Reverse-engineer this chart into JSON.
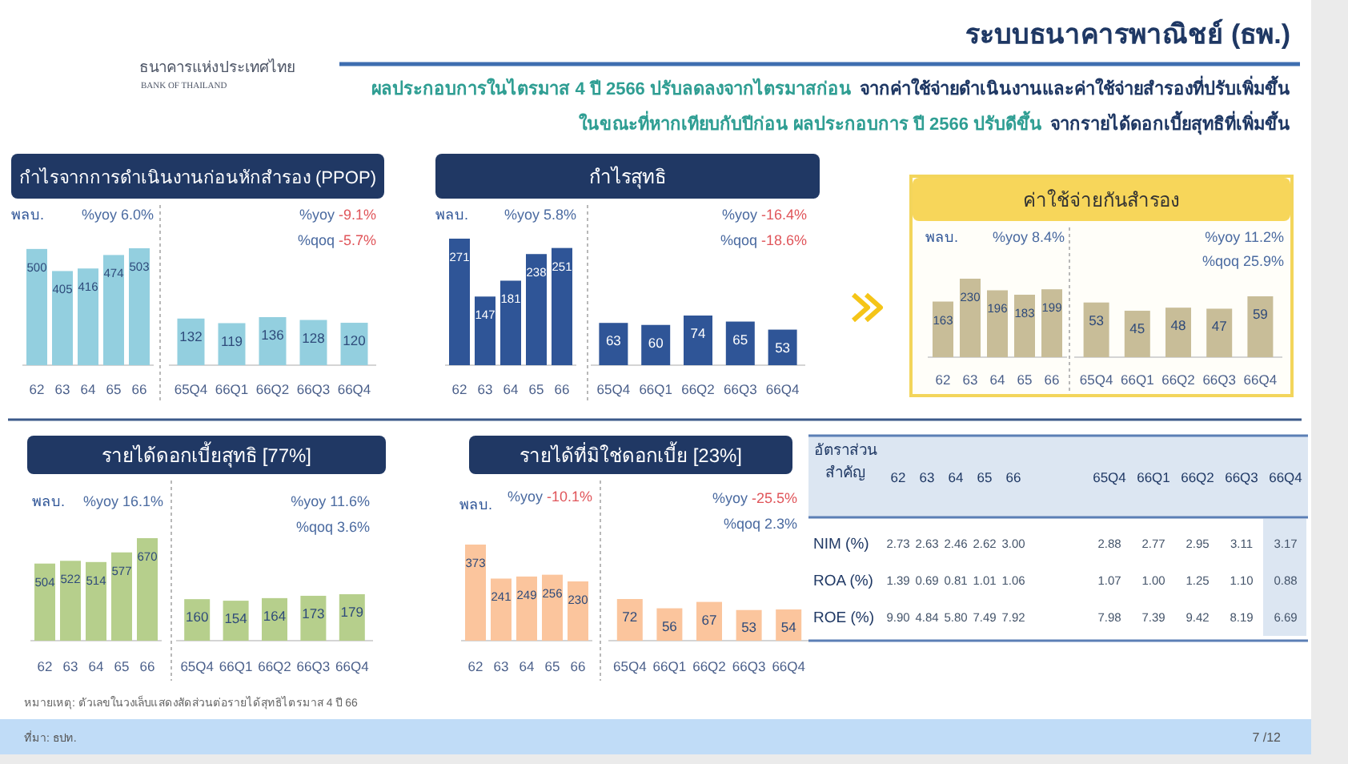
{
  "chart_data": [
    {
      "type": "other",
      "title": "ระบบธนาคารพาณิชย์ (ธพ.)",
      "annotations": [
        "ธนาคารแห่งประเทศไทย",
        "BANK OF THAILAND",
        "ผลประกอบการในไตรมาส 4 ปี 2566 ปรับลดลงจากไตรมาสก่อน",
        "จากค่าใช้จ่ายดำเนินงานและค่าใช้จ่ายสำรองที่ปรับเพิ่มขึ้น",
        "ในขณะที่หากเทียบกับปีก่อน ผลประกอบการ ปี 2566 ปรับดีขึ้น",
        "จากรายได้ดอกเบี้ยสุทธิที่เพิ่มขึ้น",
        "หมายเหตุ: ตัวเลขในวงเล็บแสดงสัดส่วนต่อรายได้สุทธิไตรมาส 4 ปี 66",
        "ที่มา: ธปท.",
        "7 /12",
        "กำไรจากการดำเนินงานก่อนหักสำรอง (PPOP)",
        "กำไรสุทธิ",
        "ค่าใช้จ่ายกันสำรอง",
        "รายได้ดอกเบี้ยสุทธิ [77%]",
        "รายได้ที่มิใช่ดอกเบี้ย [23%]"
      ]
    },
    {
      "type": "bar",
      "ylabel": "พลบ.",
      "annotations": [
        "%yoy 6.0%"
      ],
      "categories": [
        "62",
        "63",
        "64",
        "65",
        "66"
      ],
      "values": [
        500,
        405,
        416,
        474,
        503
      ],
      "color": "#93cfdf",
      "data_labels": true
    },
    {
      "type": "bar",
      "annotations": [
        "%yoy -9.1%",
        "%qoq -5.7%"
      ],
      "categories": [
        "65Q4",
        "66Q1",
        "66Q2",
        "66Q3",
        "66Q4"
      ],
      "values": [
        132,
        119,
        136,
        128,
        120
      ],
      "color": "#93cfdf",
      "data_labels": true
    },
    {
      "type": "bar",
      "ylabel": "พลบ.",
      "annotations": [
        "%yoy 5.8%"
      ],
      "categories": [
        "62",
        "63",
        "64",
        "65",
        "66"
      ],
      "values": [
        271,
        147,
        181,
        238,
        251
      ],
      "color": "#2f5597",
      "data_labels": true
    },
    {
      "type": "bar",
      "annotations": [
        "%yoy -16.4%",
        "%qoq -18.6%"
      ],
      "categories": [
        "65Q4",
        "66Q1",
        "66Q2",
        "66Q3",
        "66Q4"
      ],
      "values": [
        63,
        60,
        74,
        65,
        53
      ],
      "color": "#2f5597",
      "data_labels": true
    },
    {
      "type": "bar",
      "ylabel": "พลบ.",
      "annotations": [
        "%yoy 8.4%"
      ],
      "categories": [
        "62",
        "63",
        "64",
        "65",
        "66"
      ],
      "values": [
        163,
        230,
        196,
        183,
        199
      ],
      "color": "#c8bd98",
      "data_labels": true
    },
    {
      "type": "bar",
      "annotations": [
        "%yoy 11.2%",
        "%qoq 25.9%"
      ],
      "categories": [
        "65Q4",
        "66Q1",
        "66Q2",
        "66Q3",
        "66Q4"
      ],
      "values": [
        53,
        45,
        48,
        47,
        59
      ],
      "color": "#c8bd98",
      "data_labels": true
    },
    {
      "type": "bar",
      "ylabel": "พลบ.",
      "annotations": [
        "%yoy 16.1%"
      ],
      "categories": [
        "62",
        "63",
        "64",
        "65",
        "66"
      ],
      "values": [
        504,
        522,
        514,
        577,
        670
      ],
      "color": "#b6cf8c",
      "data_labels": true
    },
    {
      "type": "bar",
      "annotations": [
        "%yoy 11.6%",
        "%qoq 3.6%"
      ],
      "categories": [
        "65Q4",
        "66Q1",
        "66Q2",
        "66Q3",
        "66Q4"
      ],
      "values": [
        160,
        154,
        164,
        173,
        179
      ],
      "color": "#b6cf8c",
      "data_labels": true
    },
    {
      "type": "bar",
      "ylabel": "พลบ.",
      "annotations": [
        "%yoy -10.1%"
      ],
      "categories": [
        "62",
        "63",
        "64",
        "65",
        "66"
      ],
      "values": [
        373,
        241,
        249,
        256,
        230
      ],
      "color": "#fbc59d",
      "data_labels": true
    },
    {
      "type": "bar",
      "annotations": [
        "%yoy -25.5%",
        "%qoq 2.3%"
      ],
      "categories": [
        "65Q4",
        "66Q1",
        "66Q2",
        "66Q3",
        "66Q4"
      ],
      "values": [
        72,
        56,
        67,
        53,
        54
      ],
      "color": "#fbc59d",
      "data_labels": true
    },
    {
      "type": "heatmap",
      "title": "อัตราส่วน\nสำคัญ",
      "categories": [
        "62",
        "63",
        "64",
        "65",
        "66",
        "65Q4",
        "66Q1",
        "66Q2",
        "66Q3",
        "66Q4"
      ],
      "y_categories": [
        "NIM (%)",
        "ROA (%)",
        "ROE (%)"
      ],
      "data_labels": true,
      "cells": [
        [
          2.73,
          2.63,
          2.46,
          2.62,
          3.0,
          2.88,
          2.77,
          2.95,
          3.11,
          3.17
        ],
        [
          1.39,
          0.69,
          0.81,
          1.01,
          1.06,
          1.07,
          1.0,
          1.25,
          1.1,
          0.88
        ],
        [
          9.9,
          4.84,
          5.8,
          7.49,
          7.92,
          7.98,
          7.39,
          9.42,
          8.19,
          6.69
        ]
      ],
      "cell_labels": [
        [
          "2.73",
          "2.63",
          "2.46",
          "2.62",
          "3.00",
          "2.88",
          "2.77",
          "2.95",
          "3.11",
          "3.17"
        ],
        [
          "1.39",
          "0.69",
          "0.81",
          "1.01",
          "1.06",
          "1.07",
          "1.00",
          "1.25",
          "1.10",
          "0.88"
        ],
        [
          "9.90",
          "4.84",
          "5.80",
          "7.49",
          "7.92",
          "7.98",
          "7.39",
          "9.42",
          "8.19",
          "6.69"
        ]
      ]
    }
  ]
}
